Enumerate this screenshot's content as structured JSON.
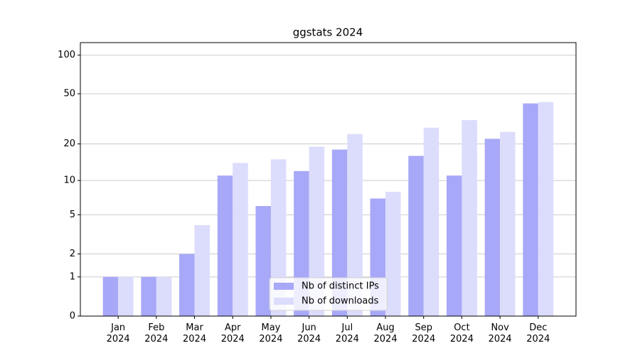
{
  "chart_data": {
    "type": "bar",
    "title": "ggstats 2024",
    "categories": [
      "Jan 2024",
      "Feb 2024",
      "Mar 2024",
      "Apr 2024",
      "May 2024",
      "Jun 2024",
      "Jul 2024",
      "Aug 2024",
      "Sep 2024",
      "Oct 2024",
      "Nov 2024",
      "Dec 2024"
    ],
    "series": [
      {
        "name": "Nb of distinct IPs",
        "color": "#a8a8f8",
        "values": [
          1,
          1,
          2,
          11,
          6,
          12,
          18,
          7,
          16,
          11,
          22,
          42
        ]
      },
      {
        "name": "Nb of downloads",
        "color": "#dcdcfc",
        "values": [
          1,
          1,
          4,
          14,
          15,
          19,
          24,
          8,
          27,
          31,
          25,
          43
        ]
      }
    ],
    "yscale": "log1p",
    "ylim": [
      0,
      125
    ],
    "yticks": [
      0,
      1,
      2,
      5,
      10,
      20,
      50,
      100
    ],
    "grid": true,
    "legend": "lower center"
  }
}
